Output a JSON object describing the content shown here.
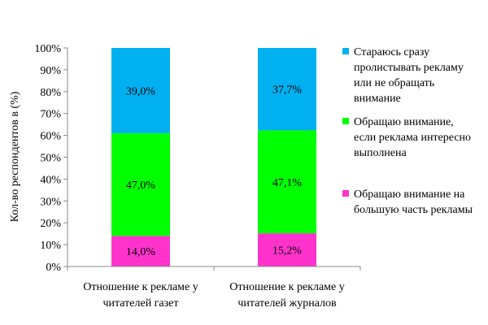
{
  "chart_data": {
    "type": "bar",
    "stacked": true,
    "title": "",
    "xlabel": "",
    "ylabel": "Кол-во респондентов в (%)",
    "ylim": [
      0,
      100
    ],
    "yticks": [
      "0%",
      "10%",
      "20%",
      "30%",
      "40%",
      "50%",
      "60%",
      "70%",
      "80%",
      "90%",
      "100%"
    ],
    "categories": [
      [
        "Отношение к рекламе у",
        "читателей газет"
      ],
      [
        "Отношение к рекламе у",
        "читателей журналов"
      ]
    ],
    "series": [
      {
        "name": [
          "Обращаю внимание на",
          "большую часть рекламы"
        ],
        "color": "#FF33CC",
        "values": [
          14.0,
          15.2
        ],
        "labels": [
          "14,0%",
          "15,2%"
        ]
      },
      {
        "name": [
          "Обращаю внимание,",
          "если реклама интересно",
          "выполнена"
        ],
        "color": "#00FF00",
        "values": [
          47.0,
          47.1
        ],
        "labels": [
          "47,0%",
          "47,1%"
        ]
      },
      {
        "name": [
          "Стараюсь сразу",
          "пролистывать рекламу",
          "или не обращать",
          "внимание"
        ],
        "color": "#00B0F0",
        "values": [
          39.0,
          37.7
        ],
        "labels": [
          "39,0%",
          "37,7%"
        ]
      }
    ],
    "legend": "right",
    "grid": false
  }
}
